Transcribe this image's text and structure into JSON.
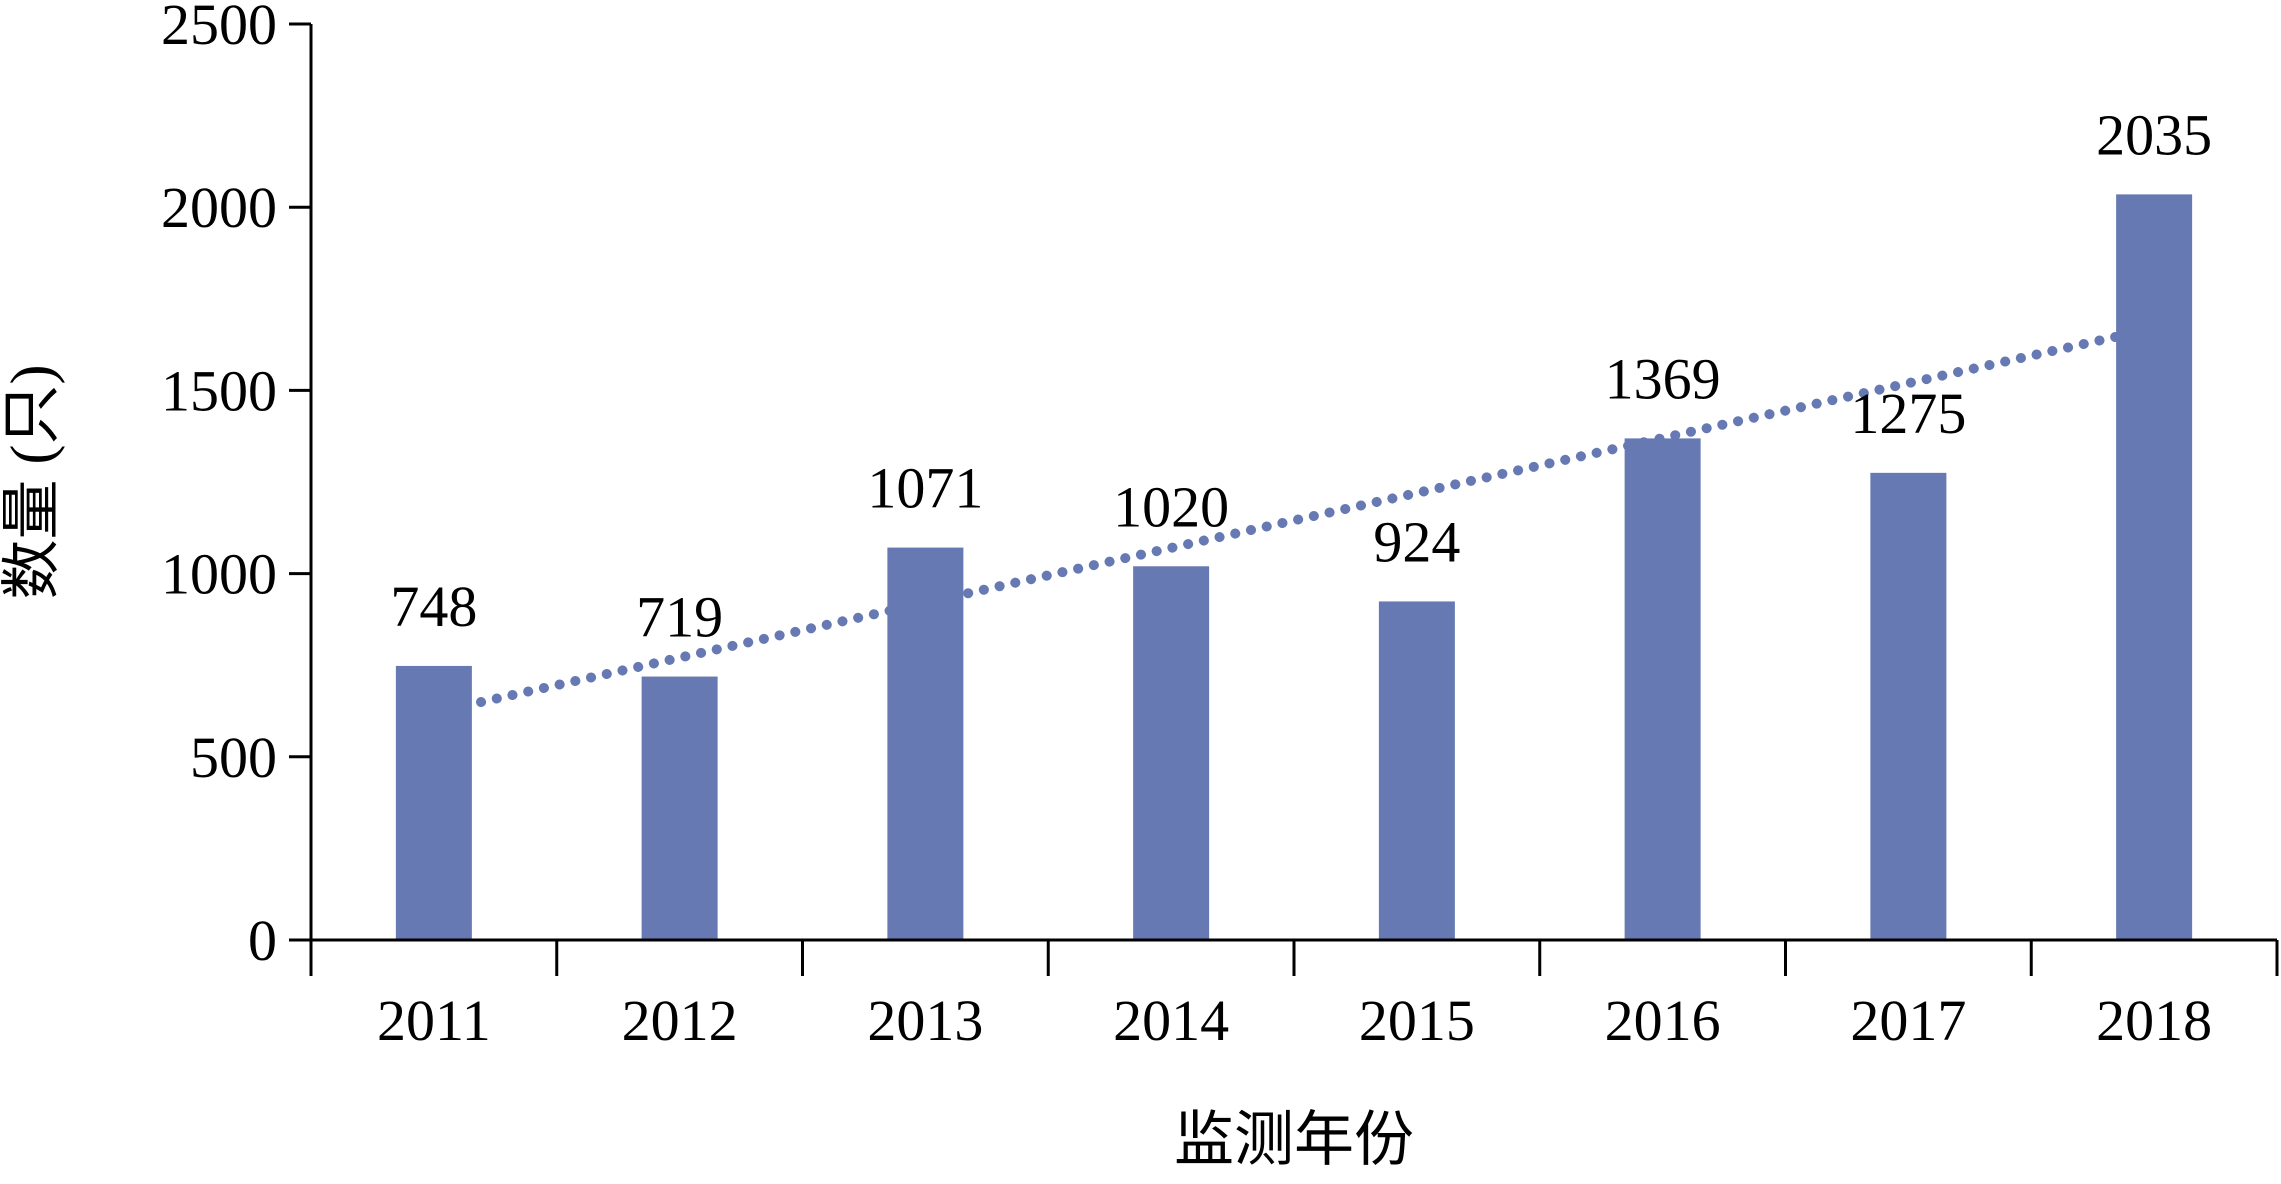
{
  "chart_data": {
    "type": "bar",
    "categories": [
      "2011",
      "2012",
      "2013",
      "2014",
      "2015",
      "2016",
      "2017",
      "2018"
    ],
    "values": [
      748,
      719,
      1071,
      1020,
      924,
      1369,
      1275,
      2035
    ],
    "data_labels": [
      "748",
      "719",
      "1071",
      "1020",
      "924",
      "1369",
      "1275",
      "2035"
    ],
    "xlabel": "监测年份",
    "ylabel": "数量 (只)",
    "ylim": [
      0,
      2500
    ],
    "yticks": [
      0,
      500,
      1000,
      1500,
      2000,
      2500
    ],
    "ytick_labels": [
      "0",
      "500",
      "1000",
      "1500",
      "2000",
      "2500"
    ],
    "trendline": {
      "type": "linear",
      "style": "dotted"
    },
    "grid": false,
    "legend": "none",
    "colors": {
      "bar": "#6679b3",
      "trendline": "#6679b3",
      "axis": "#000000"
    }
  }
}
